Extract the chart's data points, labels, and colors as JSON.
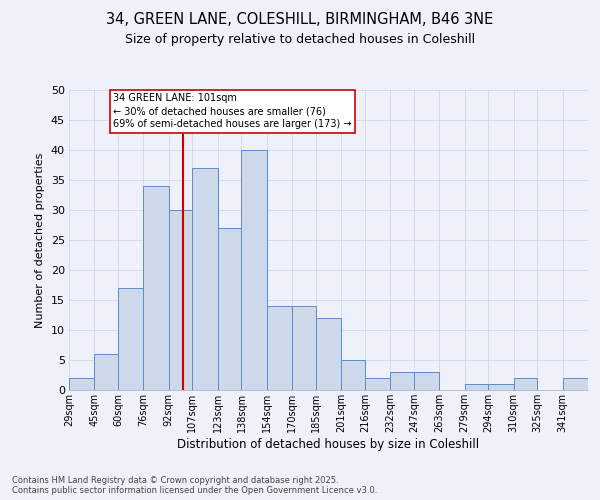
{
  "title_line1": "34, GREEN LANE, COLESHILL, BIRMINGHAM, B46 3NE",
  "title_line2": "Size of property relative to detached houses in Coleshill",
  "xlabel": "Distribution of detached houses by size in Coleshill",
  "ylabel": "Number of detached properties",
  "footer": "Contains HM Land Registry data © Crown copyright and database right 2025.\nContains public sector information licensed under the Open Government Licence v3.0.",
  "bin_labels": [
    "29sqm",
    "45sqm",
    "60sqm",
    "76sqm",
    "92sqm",
    "107sqm",
    "123sqm",
    "138sqm",
    "154sqm",
    "170sqm",
    "185sqm",
    "201sqm",
    "216sqm",
    "232sqm",
    "247sqm",
    "263sqm",
    "279sqm",
    "294sqm",
    "310sqm",
    "325sqm",
    "341sqm"
  ],
  "bin_edges": [
    29,
    45,
    60,
    76,
    92,
    107,
    123,
    138,
    154,
    170,
    185,
    201,
    216,
    232,
    247,
    263,
    279,
    294,
    310,
    325,
    341,
    357
  ],
  "values": [
    2,
    6,
    17,
    34,
    30,
    37,
    27,
    40,
    14,
    14,
    12,
    5,
    2,
    3,
    3,
    0,
    1,
    1,
    2,
    0,
    2
  ],
  "bar_face_color": "#cdd8ea",
  "bar_edge_color": "#5b8cc8",
  "grid_color": "#d0d8e8",
  "vline_x": 101,
  "vline_color": "#cc0000",
  "annotation_text": "34 GREEN LANE: 101sqm\n← 30% of detached houses are smaller (76)\n69% of semi-detached houses are larger (173) →",
  "annotation_box_color": "#ffffff",
  "annotation_box_edge": "#cc0000",
  "ylim": [
    0,
    50
  ],
  "yticks": [
    0,
    5,
    10,
    15,
    20,
    25,
    30,
    35,
    40,
    45,
    50
  ],
  "background_color": "#eef1f9",
  "title_fontsize": 10.5,
  "subtitle_fontsize": 9,
  "ylabel_fontsize": 8,
  "xlabel_fontsize": 8.5,
  "tick_fontsize": 7,
  "footer_fontsize": 6
}
